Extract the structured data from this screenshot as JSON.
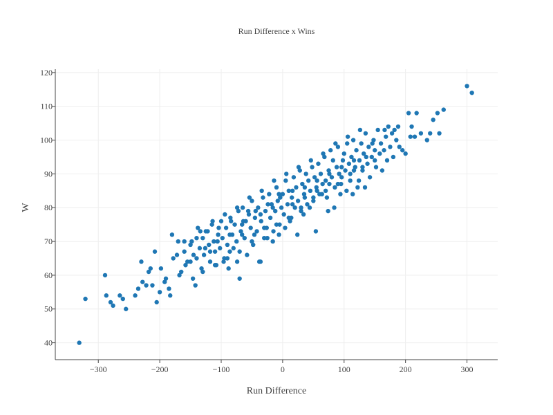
{
  "chart_data": {
    "type": "scatter",
    "title": "Run Difference x Wins",
    "xlabel": "Run Difference",
    "ylabel": "W",
    "xlim": [
      -370,
      350
    ],
    "ylim": [
      35,
      121
    ],
    "xticks": [
      -300,
      -200,
      -100,
      0,
      100,
      200,
      300
    ],
    "xtick_labels": [
      "−300",
      "−200",
      "−100",
      "0",
      "100",
      "200",
      "300"
    ],
    "yticks": [
      40,
      50,
      60,
      70,
      80,
      90,
      100,
      110,
      120
    ],
    "ytick_labels": [
      "40",
      "50",
      "60",
      "70",
      "80",
      "90",
      "100",
      "110",
      "120"
    ],
    "grid": true,
    "color": "#1f77b4",
    "series": [
      {
        "points": [
          [
            -331,
            40
          ],
          [
            -321,
            53
          ],
          [
            -289,
            60
          ],
          [
            -287,
            54
          ],
          [
            -280,
            52
          ],
          [
            -276,
            51
          ],
          [
            -265,
            54
          ],
          [
            -260,
            53
          ],
          [
            -255,
            50
          ],
          [
            -240,
            54
          ],
          [
            -235,
            56
          ],
          [
            -230,
            64
          ],
          [
            -228,
            58
          ],
          [
            -222,
            57
          ],
          [
            -218,
            61
          ],
          [
            -215,
            62
          ],
          [
            -212,
            57
          ],
          [
            -208,
            67
          ],
          [
            -205,
            52
          ],
          [
            -200,
            55
          ],
          [
            -198,
            62
          ],
          [
            -192,
            58
          ],
          [
            -190,
            59
          ],
          [
            -185,
            56
          ],
          [
            -183,
            54
          ],
          [
            -180,
            72
          ],
          [
            -178,
            65
          ],
          [
            -172,
            66
          ],
          [
            -168,
            60
          ],
          [
            -165,
            61
          ],
          [
            -160,
            67
          ],
          [
            -158,
            63
          ],
          [
            -155,
            64
          ],
          [
            -150,
            69
          ],
          [
            -148,
            70
          ],
          [
            -145,
            66
          ],
          [
            -142,
            57
          ],
          [
            -140,
            65
          ],
          [
            -138,
            74
          ],
          [
            -135,
            68
          ],
          [
            -132,
            62
          ],
          [
            -130,
            71
          ],
          [
            -128,
            66
          ],
          [
            -125,
            73
          ],
          [
            -120,
            69
          ],
          [
            -118,
            64
          ],
          [
            -115,
            75
          ],
          [
            -112,
            70
          ],
          [
            -110,
            67
          ],
          [
            -108,
            63
          ],
          [
            -105,
            72
          ],
          [
            -102,
            68
          ],
          [
            -100,
            76
          ],
          [
            -98,
            71
          ],
          [
            -95,
            65
          ],
          [
            -92,
            74
          ],
          [
            -90,
            69
          ],
          [
            -88,
            62
          ],
          [
            -85,
            77
          ],
          [
            -82,
            72
          ],
          [
            -80,
            68
          ],
          [
            -78,
            75
          ],
          [
            -75,
            70
          ],
          [
            -72,
            79
          ],
          [
            -70,
            59
          ],
          [
            -68,
            73
          ],
          [
            -65,
            80
          ],
          [
            -62,
            71
          ],
          [
            -60,
            76
          ],
          [
            -58,
            66
          ],
          [
            -55,
            78
          ],
          [
            -52,
            74
          ],
          [
            -50,
            82
          ],
          [
            -48,
            69
          ],
          [
            -45,
            77
          ],
          [
            -42,
            73
          ],
          [
            -40,
            80
          ],
          [
            -38,
            64
          ],
          [
            -35,
            76
          ],
          [
            -32,
            83
          ],
          [
            -30,
            74
          ],
          [
            -28,
            79
          ],
          [
            -25,
            71
          ],
          [
            -22,
            84
          ],
          [
            -20,
            77
          ],
          [
            -18,
            81
          ],
          [
            -15,
            73
          ],
          [
            -12,
            79
          ],
          [
            -10,
            86
          ],
          [
            -8,
            82
          ],
          [
            -5,
            75
          ],
          [
            -2,
            80
          ],
          [
            0,
            84
          ],
          [
            2,
            78
          ],
          [
            5,
            88
          ],
          [
            8,
            81
          ],
          [
            10,
            85
          ],
          [
            12,
            76
          ],
          [
            15,
            83
          ],
          [
            18,
            89
          ],
          [
            20,
            80
          ],
          [
            22,
            86
          ],
          [
            25,
            82
          ],
          [
            28,
            91
          ],
          [
            30,
            79
          ],
          [
            32,
            87
          ],
          [
            35,
            84
          ],
          [
            38,
            90
          ],
          [
            40,
            81
          ],
          [
            42,
            88
          ],
          [
            45,
            85
          ],
          [
            48,
            92
          ],
          [
            50,
            83
          ],
          [
            52,
            89
          ],
          [
            55,
            86
          ],
          [
            58,
            93
          ],
          [
            60,
            84
          ],
          [
            62,
            90
          ],
          [
            65,
            87
          ],
          [
            68,
            95
          ],
          [
            70,
            88
          ],
          [
            72,
            83
          ],
          [
            75,
            91
          ],
          [
            78,
            97
          ],
          [
            80,
            89
          ],
          [
            82,
            94
          ],
          [
            85,
            86
          ],
          [
            88,
            92
          ],
          [
            90,
            98
          ],
          [
            92,
            90
          ],
          [
            95,
            87
          ],
          [
            98,
            94
          ],
          [
            100,
            96
          ],
          [
            102,
            91
          ],
          [
            105,
            99
          ],
          [
            108,
            93
          ],
          [
            110,
            88
          ],
          [
            112,
            95
          ],
          [
            115,
            100
          ],
          [
            118,
            92
          ],
          [
            120,
            97
          ],
          [
            122,
            86
          ],
          [
            125,
            94
          ],
          [
            128,
            99
          ],
          [
            130,
            91
          ],
          [
            132,
            96
          ],
          [
            135,
            102
          ],
          [
            138,
            93
          ],
          [
            140,
            98
          ],
          [
            142,
            89
          ],
          [
            145,
            95
          ],
          [
            148,
            100
          ],
          [
            150,
            97
          ],
          [
            152,
            92
          ],
          [
            155,
            103
          ],
          [
            158,
            96
          ],
          [
            160,
            99
          ],
          [
            162,
            91
          ],
          [
            165,
            97
          ],
          [
            168,
            101
          ],
          [
            170,
            94
          ],
          [
            172,
            104
          ],
          [
            175,
            98
          ],
          [
            178,
            102
          ],
          [
            180,
            95
          ],
          [
            182,
            103
          ],
          [
            185,
            100
          ],
          [
            188,
            104
          ],
          [
            190,
            98
          ],
          [
            195,
            97
          ],
          [
            200,
            96
          ],
          [
            205,
            108
          ],
          [
            208,
            101
          ],
          [
            210,
            104
          ],
          [
            215,
            101
          ],
          [
            218,
            108
          ],
          [
            225,
            102
          ],
          [
            235,
            100
          ],
          [
            240,
            102
          ],
          [
            245,
            106
          ],
          [
            252,
            108
          ],
          [
            255,
            102
          ],
          [
            262,
            109
          ],
          [
            300,
            116
          ],
          [
            308,
            114
          ],
          [
            -118,
            67
          ],
          [
            -96,
            64
          ],
          [
            -86,
            67
          ],
          [
            -74,
            64
          ],
          [
            -66,
            72
          ],
          [
            -46,
            72
          ],
          [
            -36,
            64
          ],
          [
            -26,
            74
          ],
          [
            -16,
            70
          ],
          [
            -6,
            72
          ],
          [
            4,
            74
          ],
          [
            14,
            77
          ],
          [
            24,
            72
          ],
          [
            34,
            78
          ],
          [
            44,
            80
          ],
          [
            54,
            73
          ],
          [
            64,
            84
          ],
          [
            74,
            79
          ],
          [
            84,
            80
          ],
          [
            94,
            84
          ],
          [
            104,
            85
          ],
          [
            114,
            84
          ],
          [
            124,
            88
          ],
          [
            134,
            86
          ],
          [
            -134,
            73
          ],
          [
            -114,
            76
          ],
          [
            -94,
            78
          ],
          [
            -74,
            80
          ],
          [
            -54,
            83
          ],
          [
            -34,
            85
          ],
          [
            -14,
            88
          ],
          [
            6,
            90
          ],
          [
            26,
            92
          ],
          [
            46,
            94
          ],
          [
            66,
            96
          ],
          [
            86,
            99
          ],
          [
            106,
            101
          ],
          [
            126,
            103
          ],
          [
            146,
            99
          ],
          [
            166,
            103
          ],
          [
            -150,
            64
          ],
          [
            -130,
            61
          ],
          [
            -110,
            63
          ],
          [
            -90,
            65
          ],
          [
            -70,
            67
          ],
          [
            -50,
            70
          ],
          [
            -30,
            71
          ],
          [
            -10,
            75
          ],
          [
            10,
            77
          ],
          [
            30,
            80
          ],
          [
            50,
            82
          ],
          [
            70,
            85
          ],
          [
            90,
            87
          ],
          [
            110,
            90
          ],
          [
            130,
            92
          ],
          [
            150,
            94
          ],
          [
            -170,
            70
          ],
          [
            -160,
            70
          ],
          [
            -140,
            71
          ],
          [
            -122,
            73
          ],
          [
            -104,
            74
          ],
          [
            -84,
            76
          ],
          [
            -64,
            76
          ],
          [
            -44,
            79
          ],
          [
            -24,
            81
          ],
          [
            -4,
            83
          ],
          [
            16,
            85
          ],
          [
            36,
            86
          ],
          [
            56,
            88
          ],
          [
            76,
            90
          ],
          [
            96,
            92
          ],
          [
            116,
            94
          ],
          [
            -146,
            59
          ],
          [
            -126,
            68
          ],
          [
            -106,
            70
          ],
          [
            -86,
            72
          ],
          [
            -66,
            75
          ],
          [
            -56,
            79
          ],
          [
            -36,
            78
          ],
          [
            -16,
            80
          ],
          [
            -6,
            84
          ],
          [
            16,
            81
          ],
          [
            36,
            83
          ],
          [
            56,
            85
          ],
          [
            76,
            87
          ],
          [
            96,
            89
          ],
          [
            116,
            91
          ],
          [
            136,
            95
          ]
        ]
      }
    ]
  }
}
